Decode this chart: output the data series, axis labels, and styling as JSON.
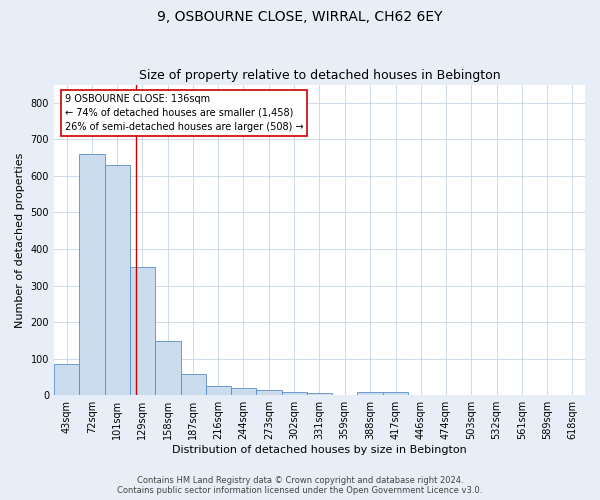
{
  "title1": "9, OSBOURNE CLOSE, WIRRAL, CH62 6EY",
  "title2": "Size of property relative to detached houses in Bebington",
  "xlabel": "Distribution of detached houses by size in Bebington",
  "ylabel": "Number of detached properties",
  "bar_color": "#ccdcef",
  "bar_edge_color": "#5b8ec4",
  "vline_color": "#cc0000",
  "vline_x": 136,
  "annotation_line1": "9 OSBOURNE CLOSE: 136sqm",
  "annotation_line2": "← 74% of detached houses are smaller (1,458)",
  "annotation_line3": "26% of semi-detached houses are larger (508) →",
  "annotation_box_color": "white",
  "annotation_box_edge": "#cc0000",
  "footer_text": "Contains HM Land Registry data © Crown copyright and database right 2024.\nContains public sector information licensed under the Open Government Licence v3.0.",
  "bins": [
    43,
    72,
    101,
    129,
    158,
    187,
    216,
    244,
    273,
    302,
    331,
    359,
    388,
    417,
    446,
    474,
    503,
    532,
    561,
    589,
    618
  ],
  "counts": [
    85,
    660,
    630,
    350,
    148,
    57,
    25,
    20,
    13,
    10,
    7,
    0,
    10,
    9,
    1,
    1,
    1,
    1,
    1,
    1,
    1
  ],
  "ylim": [
    0,
    850
  ],
  "yticks": [
    0,
    100,
    200,
    300,
    400,
    500,
    600,
    700,
    800
  ],
  "background_color": "#e8eef7",
  "plot_bg_color": "#ffffff",
  "title1_fontsize": 10,
  "title2_fontsize": 9,
  "grid_color": "#c8d4e4",
  "tick_fontsize": 7,
  "ylabel_fontsize": 8,
  "xlabel_fontsize": 8
}
